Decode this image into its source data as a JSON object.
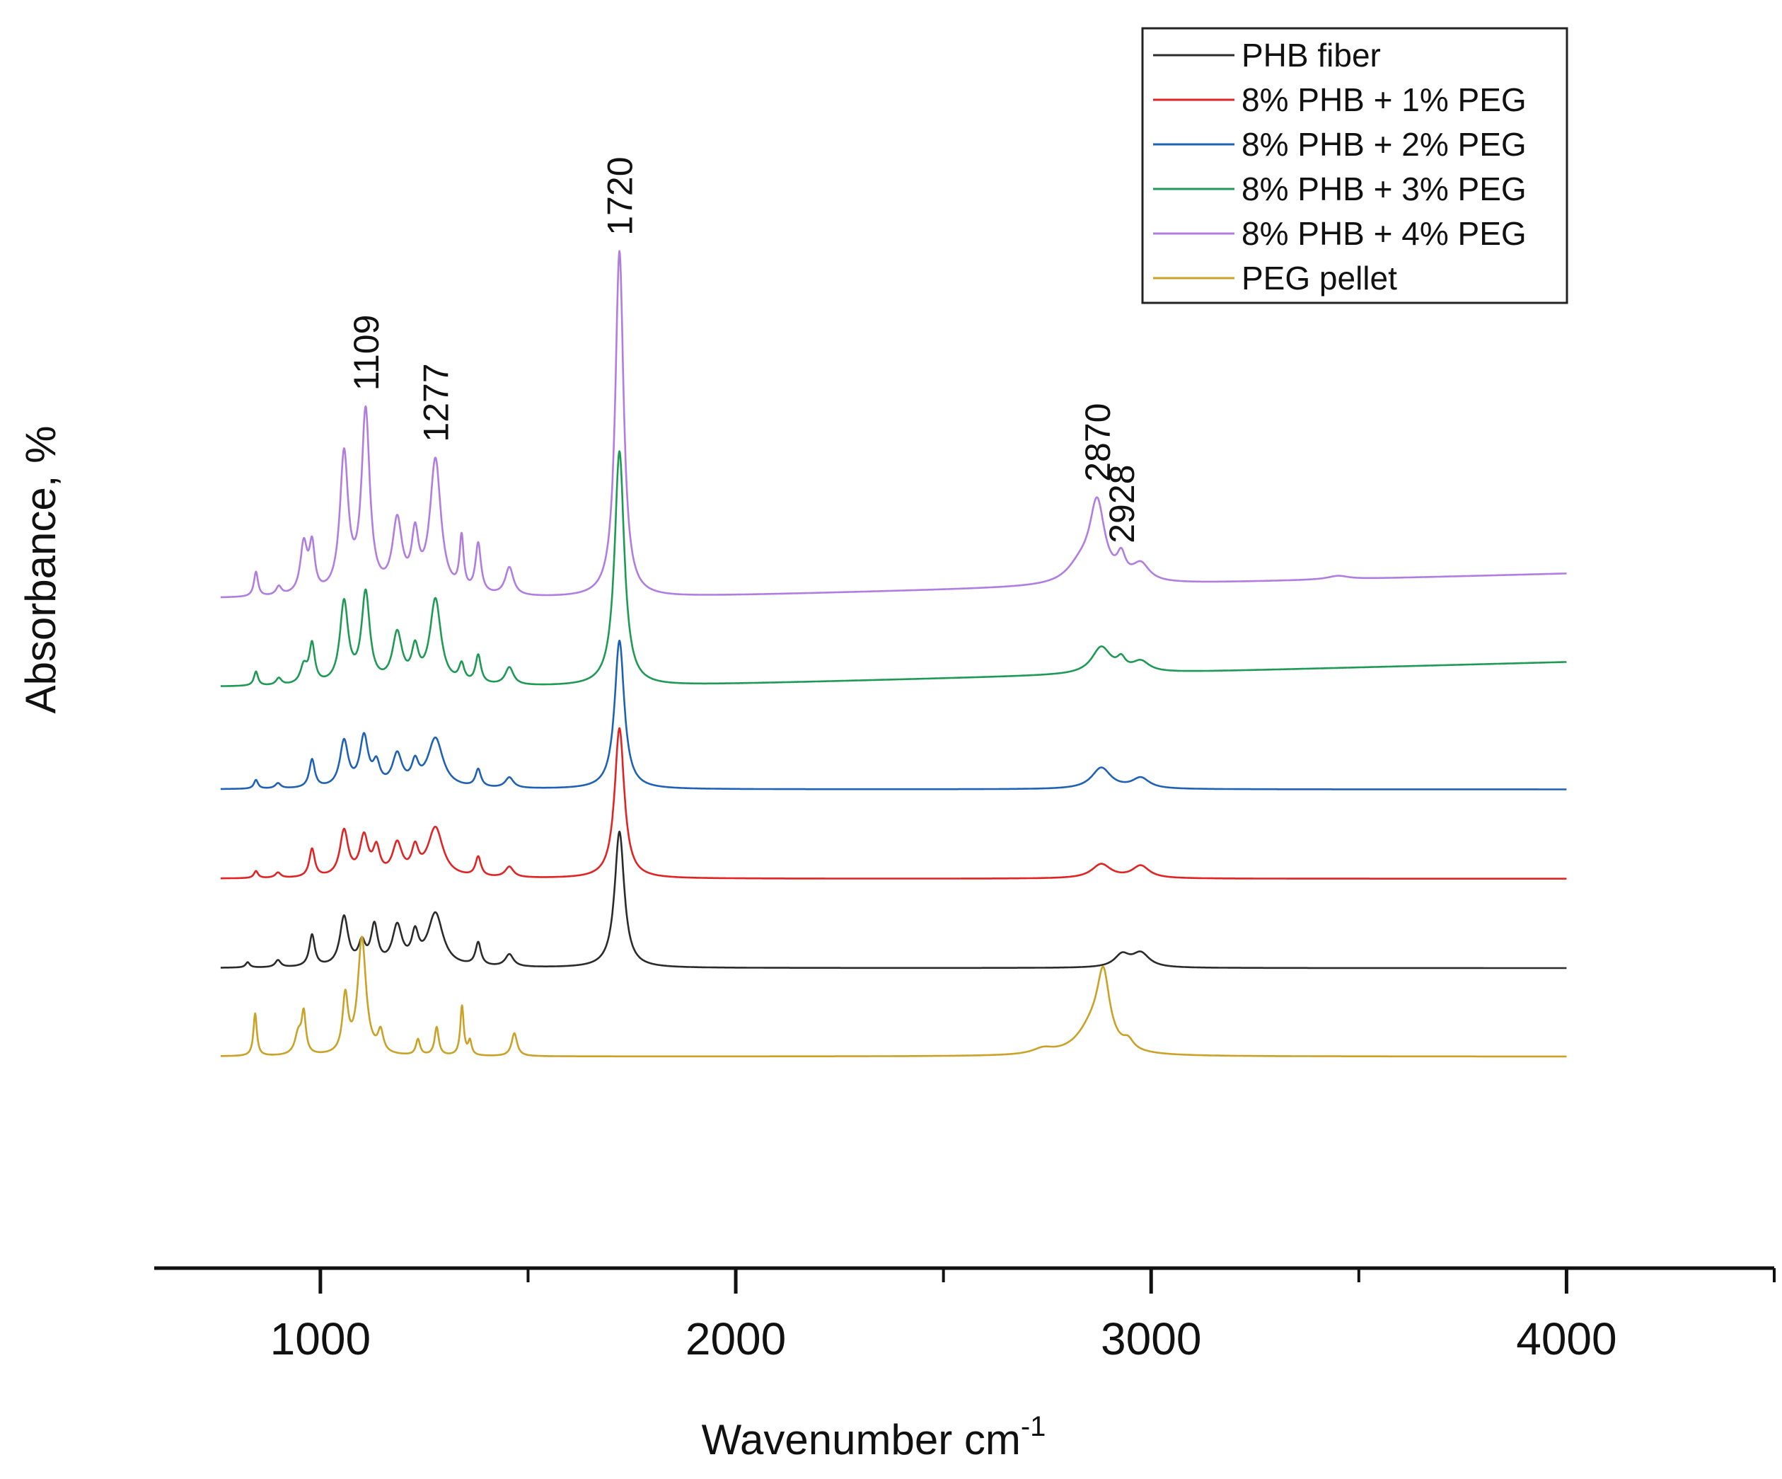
{
  "chart_data": {
    "type": "line",
    "title": "",
    "xlabel": "Wavenumber cm",
    "xlabel_superscript": "-1",
    "ylabel": "Absorbance, %",
    "xlim": [
      600,
      4500
    ],
    "xticks": [
      1000,
      2000,
      3000,
      4000
    ],
    "xtick_labels": [
      "1000",
      "2000",
      "3000",
      "4000"
    ],
    "grid": false,
    "legend_position": "top-right",
    "annotations": [
      {
        "text": "1109",
        "x": 1109
      },
      {
        "text": "1277",
        "x": 1277
      },
      {
        "text": "1720",
        "x": 1720
      },
      {
        "text": "2870",
        "x": 2870
      },
      {
        "text": "2928",
        "x": 2928
      }
    ],
    "series": [
      {
        "name": "PHB fiber",
        "color": "#2b2b2b",
        "baseline": 0.0,
        "x_end": 4000,
        "peaks": [
          {
            "x": 825,
            "h": 0.03,
            "w": 6
          },
          {
            "x": 898,
            "h": 0.04,
            "w": 8
          },
          {
            "x": 980,
            "h": 0.18,
            "w": 8
          },
          {
            "x": 1057,
            "h": 0.28,
            "w": 12
          },
          {
            "x": 1100,
            "h": 0.12,
            "w": 10
          },
          {
            "x": 1130,
            "h": 0.22,
            "w": 10
          },
          {
            "x": 1185,
            "h": 0.22,
            "w": 14
          },
          {
            "x": 1228,
            "h": 0.16,
            "w": 10
          },
          {
            "x": 1277,
            "h": 0.3,
            "w": 22
          },
          {
            "x": 1380,
            "h": 0.13,
            "w": 8
          },
          {
            "x": 1455,
            "h": 0.07,
            "w": 12
          },
          {
            "x": 1720,
            "h": 0.77,
            "w": 14
          },
          {
            "x": 2930,
            "h": 0.07,
            "w": 22
          },
          {
            "x": 2975,
            "h": 0.08,
            "w": 25
          }
        ]
      },
      {
        "name": "8% PHB + 1% PEG",
        "color": "#e02424",
        "baseline": 0.505,
        "x_end": 4000,
        "peaks": [
          {
            "x": 845,
            "h": 0.04,
            "w": 6
          },
          {
            "x": 898,
            "h": 0.03,
            "w": 8
          },
          {
            "x": 980,
            "h": 0.16,
            "w": 8
          },
          {
            "x": 1057,
            "h": 0.26,
            "w": 12
          },
          {
            "x": 1105,
            "h": 0.22,
            "w": 12
          },
          {
            "x": 1135,
            "h": 0.15,
            "w": 10
          },
          {
            "x": 1185,
            "h": 0.18,
            "w": 14
          },
          {
            "x": 1228,
            "h": 0.14,
            "w": 10
          },
          {
            "x": 1277,
            "h": 0.28,
            "w": 22
          },
          {
            "x": 1380,
            "h": 0.11,
            "w": 8
          },
          {
            "x": 1455,
            "h": 0.06,
            "w": 12
          },
          {
            "x": 1720,
            "h": 0.85,
            "w": 14
          },
          {
            "x": 2880,
            "h": 0.08,
            "w": 28
          },
          {
            "x": 2975,
            "h": 0.07,
            "w": 25
          }
        ]
      },
      {
        "name": "8% PHB + 2% PEG",
        "color": "#1f62b5",
        "baseline": 1.01,
        "x_end": 4000,
        "peaks": [
          {
            "x": 845,
            "h": 0.05,
            "w": 6
          },
          {
            "x": 898,
            "h": 0.03,
            "w": 8
          },
          {
            "x": 980,
            "h": 0.16,
            "w": 8
          },
          {
            "x": 1057,
            "h": 0.26,
            "w": 12
          },
          {
            "x": 1105,
            "h": 0.28,
            "w": 12
          },
          {
            "x": 1135,
            "h": 0.12,
            "w": 10
          },
          {
            "x": 1185,
            "h": 0.18,
            "w": 14
          },
          {
            "x": 1228,
            "h": 0.12,
            "w": 10
          },
          {
            "x": 1277,
            "h": 0.28,
            "w": 22
          },
          {
            "x": 1380,
            "h": 0.1,
            "w": 8
          },
          {
            "x": 1455,
            "h": 0.06,
            "w": 12
          },
          {
            "x": 1720,
            "h": 0.84,
            "w": 14
          },
          {
            "x": 2880,
            "h": 0.12,
            "w": 28
          },
          {
            "x": 2975,
            "h": 0.06,
            "w": 25
          }
        ]
      },
      {
        "name": "8% PHB + 3% PEG",
        "color": "#1f9a55",
        "baseline": 1.59,
        "x_end": 4000,
        "slope_after": 1740,
        "slope_total": 0.14,
        "peaks": [
          {
            "x": 845,
            "h": 0.08,
            "w": 6
          },
          {
            "x": 900,
            "h": 0.04,
            "w": 8
          },
          {
            "x": 960,
            "h": 0.1,
            "w": 10
          },
          {
            "x": 980,
            "h": 0.22,
            "w": 8
          },
          {
            "x": 1057,
            "h": 0.46,
            "w": 12
          },
          {
            "x": 1109,
            "h": 0.51,
            "w": 12
          },
          {
            "x": 1185,
            "h": 0.28,
            "w": 14
          },
          {
            "x": 1228,
            "h": 0.18,
            "w": 10
          },
          {
            "x": 1277,
            "h": 0.48,
            "w": 16
          },
          {
            "x": 1340,
            "h": 0.1,
            "w": 8
          },
          {
            "x": 1380,
            "h": 0.16,
            "w": 8
          },
          {
            "x": 1455,
            "h": 0.1,
            "w": 12
          },
          {
            "x": 1720,
            "h": 1.33,
            "w": 14
          },
          {
            "x": 2880,
            "h": 0.15,
            "w": 28
          },
          {
            "x": 2928,
            "h": 0.06,
            "w": 12
          },
          {
            "x": 2975,
            "h": 0.06,
            "w": 25
          }
        ]
      },
      {
        "name": "8% PHB + 4% PEG",
        "color": "#b07de0",
        "baseline": 2.09,
        "x_end": 4000,
        "slope_after": 1740,
        "slope_total": 0.14,
        "peaks": [
          {
            "x": 845,
            "h": 0.14,
            "w": 6
          },
          {
            "x": 900,
            "h": 0.05,
            "w": 8
          },
          {
            "x": 960,
            "h": 0.28,
            "w": 10
          },
          {
            "x": 980,
            "h": 0.26,
            "w": 8
          },
          {
            "x": 1057,
            "h": 0.78,
            "w": 12
          },
          {
            "x": 1109,
            "h": 1.02,
            "w": 12
          },
          {
            "x": 1185,
            "h": 0.4,
            "w": 14
          },
          {
            "x": 1228,
            "h": 0.3,
            "w": 10
          },
          {
            "x": 1277,
            "h": 0.76,
            "w": 16
          },
          {
            "x": 1340,
            "h": 0.3,
            "w": 6
          },
          {
            "x": 1380,
            "h": 0.28,
            "w": 8
          },
          {
            "x": 1455,
            "h": 0.16,
            "w": 12
          },
          {
            "x": 1720,
            "h": 1.96,
            "w": 12
          },
          {
            "x": 2830,
            "h": 0.1,
            "w": 40
          },
          {
            "x": 2870,
            "h": 0.44,
            "w": 22
          },
          {
            "x": 2928,
            "h": 0.12,
            "w": 12
          },
          {
            "x": 2975,
            "h": 0.1,
            "w": 25
          },
          {
            "x": 3450,
            "h": 0.02,
            "w": 30
          }
        ]
      },
      {
        "name": "PEG pellet",
        "color": "#c9a227",
        "baseline": -0.5,
        "x_end": 4000,
        "peaks": [
          {
            "x": 843,
            "h": 0.24,
            "w": 5
          },
          {
            "x": 947,
            "h": 0.12,
            "w": 10
          },
          {
            "x": 960,
            "h": 0.22,
            "w": 6
          },
          {
            "x": 1060,
            "h": 0.32,
            "w": 8
          },
          {
            "x": 1100,
            "h": 0.66,
            "w": 12
          },
          {
            "x": 1145,
            "h": 0.12,
            "w": 8
          },
          {
            "x": 1235,
            "h": 0.09,
            "w": 6
          },
          {
            "x": 1280,
            "h": 0.16,
            "w": 6
          },
          {
            "x": 1341,
            "h": 0.28,
            "w": 5
          },
          {
            "x": 1360,
            "h": 0.08,
            "w": 5
          },
          {
            "x": 1467,
            "h": 0.13,
            "w": 8
          },
          {
            "x": 2740,
            "h": 0.03,
            "w": 30
          },
          {
            "x": 2860,
            "h": 0.16,
            "w": 45
          },
          {
            "x": 2885,
            "h": 0.38,
            "w": 18
          },
          {
            "x": 2945,
            "h": 0.05,
            "w": 15
          }
        ]
      }
    ]
  }
}
